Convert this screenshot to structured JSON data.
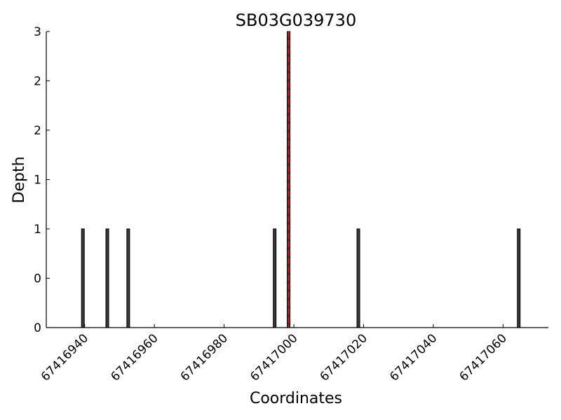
{
  "chart_data": {
    "type": "bar",
    "title": "SB03G039730",
    "xlabel": "Coordinates",
    "ylabel": "Depth",
    "xlim": [
      67416929,
      67417073
    ],
    "ylim": [
      0,
      3
    ],
    "x_ticks": [
      67416940,
      67416960,
      67416980,
      67417000,
      67417020,
      67417040,
      67417060
    ],
    "x_tick_labels": [
      "67416940",
      "67416960",
      "67416980",
      "67417000",
      "67417020",
      "67417040",
      "67417060"
    ],
    "y_ticks": [
      0,
      0.5,
      1,
      1.5,
      2,
      2.5,
      3
    ],
    "y_tick_labels": [
      "0",
      "0",
      "1",
      "1",
      "2",
      "2",
      "3"
    ],
    "x": [
      67416939.5,
      67416946.5,
      67416952.5,
      67416994.5,
      67416998.5,
      67417018.5,
      67417064.5
    ],
    "values": [
      1,
      1,
      1,
      1,
      3,
      1,
      1
    ],
    "reference_line": {
      "x": 67416998.5,
      "color": "#e01010",
      "style": "dashed"
    },
    "bar_color": "#3a3a3a",
    "grid": false,
    "legend": "none"
  }
}
